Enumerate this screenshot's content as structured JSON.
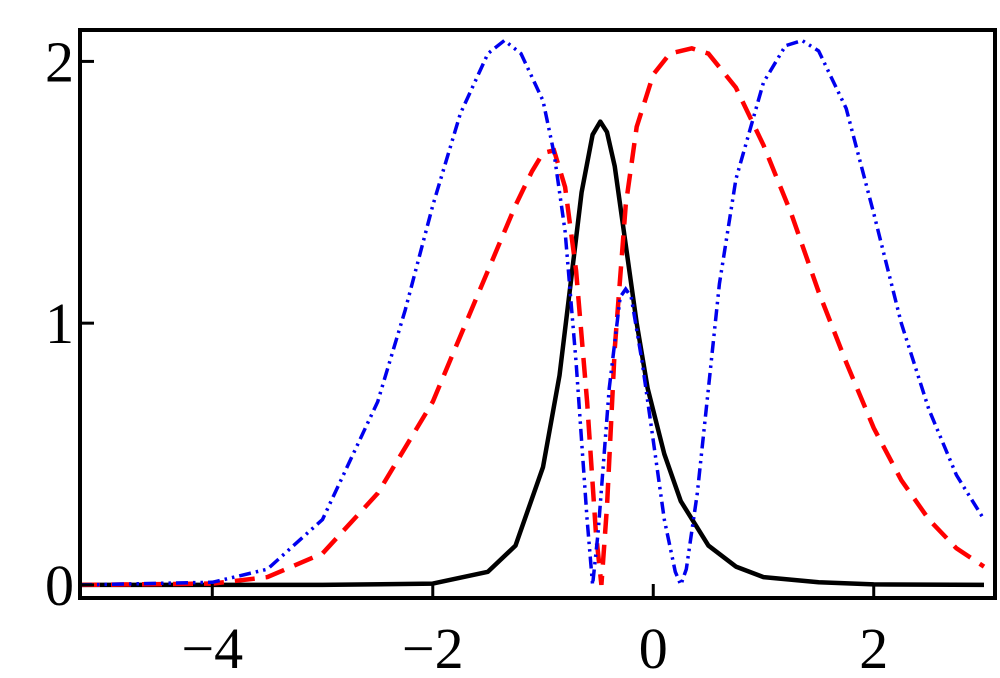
{
  "chart_data": {
    "type": "line",
    "title": "",
    "xlabel": "",
    "ylabel": "",
    "xlim": [
      -5.2,
      3.1
    ],
    "ylim": [
      -0.05,
      2.12
    ],
    "grid": false,
    "legend": "none",
    "x_ticks": [
      {
        "value": -4,
        "label": "−4"
      },
      {
        "value": -2,
        "label": "−2"
      },
      {
        "value": 0,
        "label": "0"
      },
      {
        "value": 2,
        "label": "2"
      }
    ],
    "y_ticks": [
      {
        "value": 0,
        "label": "0"
      },
      {
        "value": 1,
        "label": "1"
      },
      {
        "value": 2,
        "label": "2"
      }
    ],
    "series": [
      {
        "style": "solid",
        "color": "#000000",
        "x": [
          -5.2,
          -3.0,
          -2.0,
          -1.5,
          -1.25,
          -1.0,
          -0.85,
          -0.75,
          -0.65,
          -0.55,
          -0.48,
          -0.42,
          -0.35,
          -0.25,
          -0.15,
          -0.05,
          0.1,
          0.25,
          0.5,
          0.75,
          1.0,
          1.5,
          2.0,
          3.0
        ],
        "y": [
          0.0,
          0.0,
          0.005,
          0.05,
          0.15,
          0.45,
          0.8,
          1.15,
          1.5,
          1.72,
          1.77,
          1.73,
          1.6,
          1.3,
          1.0,
          0.75,
          0.5,
          0.32,
          0.15,
          0.07,
          0.03,
          0.01,
          0.002,
          0.0
        ]
      },
      {
        "style": "dashed",
        "color": "#ff0000",
        "x": [
          -5.2,
          -4.0,
          -3.5,
          -3.0,
          -2.5,
          -2.0,
          -1.75,
          -1.5,
          -1.25,
          -1.1,
          -1.0,
          -0.9,
          -0.8,
          -0.7,
          -0.6,
          -0.52,
          -0.47,
          -0.42,
          -0.35,
          -0.25,
          -0.15,
          0.0,
          0.15,
          0.35,
          0.5,
          0.75,
          1.0,
          1.25,
          1.5,
          1.75,
          2.0,
          2.25,
          2.5,
          2.75,
          3.0
        ],
        "y": [
          0.0,
          0.005,
          0.03,
          0.12,
          0.35,
          0.7,
          0.95,
          1.2,
          1.45,
          1.58,
          1.65,
          1.66,
          1.52,
          1.2,
          0.7,
          0.2,
          0.0,
          0.3,
          0.9,
          1.45,
          1.75,
          1.95,
          2.03,
          2.05,
          2.03,
          1.9,
          1.68,
          1.42,
          1.12,
          0.85,
          0.6,
          0.4,
          0.25,
          0.14,
          0.07
        ]
      },
      {
        "style": "dotdash",
        "color": "#0000ee",
        "x": [
          -5.2,
          -4.0,
          -3.5,
          -3.0,
          -2.5,
          -2.25,
          -2.0,
          -1.75,
          -1.5,
          -1.35,
          -1.2,
          -1.0,
          -0.9,
          -0.8,
          -0.7,
          -0.6,
          -0.55,
          -0.5,
          -0.4,
          -0.3,
          -0.25,
          -0.2,
          -0.1,
          0.0,
          0.1,
          0.2,
          0.25,
          0.3,
          0.4,
          0.5,
          0.6,
          0.75,
          1.0,
          1.2,
          1.35,
          1.5,
          1.75,
          2.0,
          2.25,
          2.5,
          2.75,
          3.0
        ],
        "y": [
          0.0,
          0.01,
          0.06,
          0.25,
          0.7,
          1.05,
          1.45,
          1.8,
          2.03,
          2.08,
          2.03,
          1.85,
          1.65,
          1.35,
          0.85,
          0.25,
          0.0,
          0.2,
          0.75,
          1.1,
          1.13,
          1.1,
          0.85,
          0.55,
          0.25,
          0.05,
          0.0,
          0.06,
          0.35,
          0.75,
          1.15,
          1.55,
          1.92,
          2.06,
          2.08,
          2.04,
          1.82,
          1.42,
          1.0,
          0.67,
          0.42,
          0.25
        ]
      }
    ]
  }
}
